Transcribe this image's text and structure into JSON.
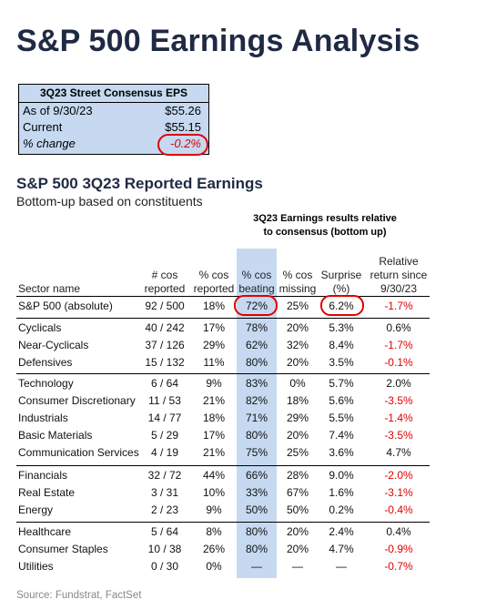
{
  "title": "S&P 500 Earnings Analysis",
  "eps_box": {
    "header": "3Q23 Street Consensus EPS",
    "rows": [
      {
        "label": "As of 9/30/23",
        "value": "$55.26"
      },
      {
        "label": "Current",
        "value": "$55.15"
      },
      {
        "label": "% change",
        "value": "-0.2%"
      }
    ]
  },
  "section": {
    "title": "S&P 500 3Q23 Reported Earnings",
    "subtitle": "Bottom-up based on constituents"
  },
  "group_header": [
    "3Q23 Earnings results relative",
    "to consensus (bottom up)"
  ],
  "columns": {
    "sector": [
      "Sector name"
    ],
    "cos_reported": [
      "# cos",
      "reported"
    ],
    "pct_reported": [
      "% cos",
      "reported"
    ],
    "pct_beating": [
      "% cos",
      "beating"
    ],
    "pct_missing": [
      "% cos",
      "missing"
    ],
    "surprise": [
      "Surprise",
      "(%)"
    ],
    "relative_return": [
      "Relative",
      "return since",
      "9/30/23"
    ]
  },
  "rows": [
    {
      "sector": "S&P 500 (absolute)",
      "cos": "92 / 500",
      "reported": "18%",
      "beating": "72%",
      "missing": "25%",
      "surprise": "6.2%",
      "ret": "-1.7%",
      "neg": true
    },
    {
      "sector": "Cyclicals",
      "cos": "40 / 242",
      "reported": "17%",
      "beating": "78%",
      "missing": "20%",
      "surprise": "5.3%",
      "ret": "0.6%",
      "neg": false
    },
    {
      "sector": "Near-Cyclicals",
      "cos": "37 / 126",
      "reported": "29%",
      "beating": "62%",
      "missing": "32%",
      "surprise": "8.4%",
      "ret": "-1.7%",
      "neg": true
    },
    {
      "sector": "Defensives",
      "cos": "15 / 132",
      "reported": "11%",
      "beating": "80%",
      "missing": "20%",
      "surprise": "3.5%",
      "ret": "-0.1%",
      "neg": true
    },
    {
      "sector": "Technology",
      "cos": "6 / 64",
      "reported": "9%",
      "beating": "83%",
      "missing": "0%",
      "surprise": "5.7%",
      "ret": "2.0%",
      "neg": false
    },
    {
      "sector": "Consumer Discretionary",
      "cos": "11 / 53",
      "reported": "21%",
      "beating": "82%",
      "missing": "18%",
      "surprise": "5.6%",
      "ret": "-3.5%",
      "neg": true
    },
    {
      "sector": "Industrials",
      "cos": "14 / 77",
      "reported": "18%",
      "beating": "71%",
      "missing": "29%",
      "surprise": "5.5%",
      "ret": "-1.4%",
      "neg": true
    },
    {
      "sector": "Basic Materials",
      "cos": "5 / 29",
      "reported": "17%",
      "beating": "80%",
      "missing": "20%",
      "surprise": "7.4%",
      "ret": "-3.5%",
      "neg": true
    },
    {
      "sector": "Communication Services",
      "cos": "4 / 19",
      "reported": "21%",
      "beating": "75%",
      "missing": "25%",
      "surprise": "3.6%",
      "ret": "4.7%",
      "neg": false
    },
    {
      "sector": "Financials",
      "cos": "32 / 72",
      "reported": "44%",
      "beating": "66%",
      "missing": "28%",
      "surprise": "9.0%",
      "ret": "-2.0%",
      "neg": true
    },
    {
      "sector": "Real Estate",
      "cos": "3 / 31",
      "reported": "10%",
      "beating": "33%",
      "missing": "67%",
      "surprise": "1.6%",
      "ret": "-3.1%",
      "neg": true
    },
    {
      "sector": "Energy",
      "cos": "2 / 23",
      "reported": "9%",
      "beating": "50%",
      "missing": "50%",
      "surprise": "0.2%",
      "ret": "-0.4%",
      "neg": true
    },
    {
      "sector": "Healthcare",
      "cos": "5 / 64",
      "reported": "8%",
      "beating": "80%",
      "missing": "20%",
      "surprise": "2.4%",
      "ret": "0.4%",
      "neg": false
    },
    {
      "sector": "Consumer Staples",
      "cos": "10 / 38",
      "reported": "26%",
      "beating": "80%",
      "missing": "20%",
      "surprise": "4.7%",
      "ret": "-0.9%",
      "neg": true
    },
    {
      "sector": "Utilities",
      "cos": "0 / 30",
      "reported": "0%",
      "beating": "—",
      "missing": "—",
      "surprise": "—",
      "ret": "-0.7%",
      "neg": true
    }
  ],
  "source": "Source: Fundstrat, FactSet",
  "colors": {
    "highlight": "#c6d9f1",
    "negative": "#e00000",
    "title": "#1f2a44"
  }
}
